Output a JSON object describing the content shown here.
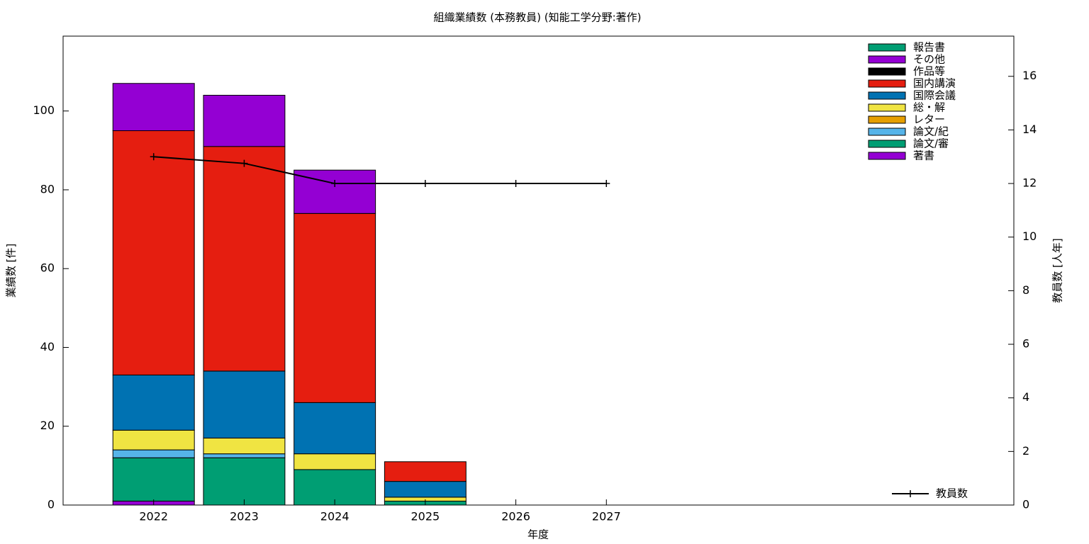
{
  "chart_data": {
    "type": "bar",
    "title": "組織業績数 (本務教員) (知能工学分野:著作)",
    "x_label": "年度",
    "y_label": "業績数 [件]",
    "y2_label": "教員数 [人年]",
    "x": [
      2022,
      2023,
      2024,
      2025,
      2026,
      2027
    ],
    "xlim": [
      2021,
      2031.5
    ],
    "xticks": [
      2022,
      2023,
      2024,
      2025,
      2026,
      2027
    ],
    "ylim": [
      0,
      119
    ],
    "yticks": [
      0,
      20,
      40,
      60,
      80,
      100
    ],
    "y2lim": [
      0,
      17.5
    ],
    "y2ticks": [
      0,
      2,
      4,
      6,
      8,
      10,
      12,
      14,
      16
    ],
    "stacked": true,
    "legend": "top-right",
    "series": [
      {
        "name": "著書",
        "color": "#9400d3",
        "values": [
          1,
          0,
          0,
          0,
          0,
          0
        ]
      },
      {
        "name": "論文/審",
        "color": "#009e73",
        "values": [
          11,
          12,
          9,
          1,
          0,
          0
        ]
      },
      {
        "name": "論文/紀",
        "color": "#56b4e9",
        "values": [
          2,
          1,
          0,
          0,
          0,
          0
        ]
      },
      {
        "name": "レター",
        "color": "#e69f00",
        "values": [
          0,
          0,
          0,
          0,
          0,
          0
        ]
      },
      {
        "name": "総・解",
        "color": "#f0e442",
        "values": [
          5,
          4,
          4,
          1,
          0,
          0
        ]
      },
      {
        "name": "国際会議",
        "color": "#0072b2",
        "values": [
          14,
          17,
          13,
          4,
          0,
          0
        ]
      },
      {
        "name": "国内講演",
        "color": "#e51e10",
        "values": [
          62,
          57,
          48,
          5,
          0,
          0
        ]
      },
      {
        "name": "作品等",
        "color": "#000000",
        "values": [
          0,
          0,
          0,
          0,
          0,
          0
        ]
      },
      {
        "name": "その他",
        "color": "#9400d3",
        "values": [
          12,
          13,
          11,
          0,
          0,
          0
        ]
      },
      {
        "name": "報告書",
        "color": "#009e73",
        "values": [
          0,
          0,
          0,
          0,
          0,
          0
        ]
      }
    ],
    "line_series": {
      "name": "教員数",
      "color": "#000000",
      "axis": "y2",
      "values": [
        13,
        12.75,
        12,
        12,
        12,
        12
      ]
    }
  }
}
